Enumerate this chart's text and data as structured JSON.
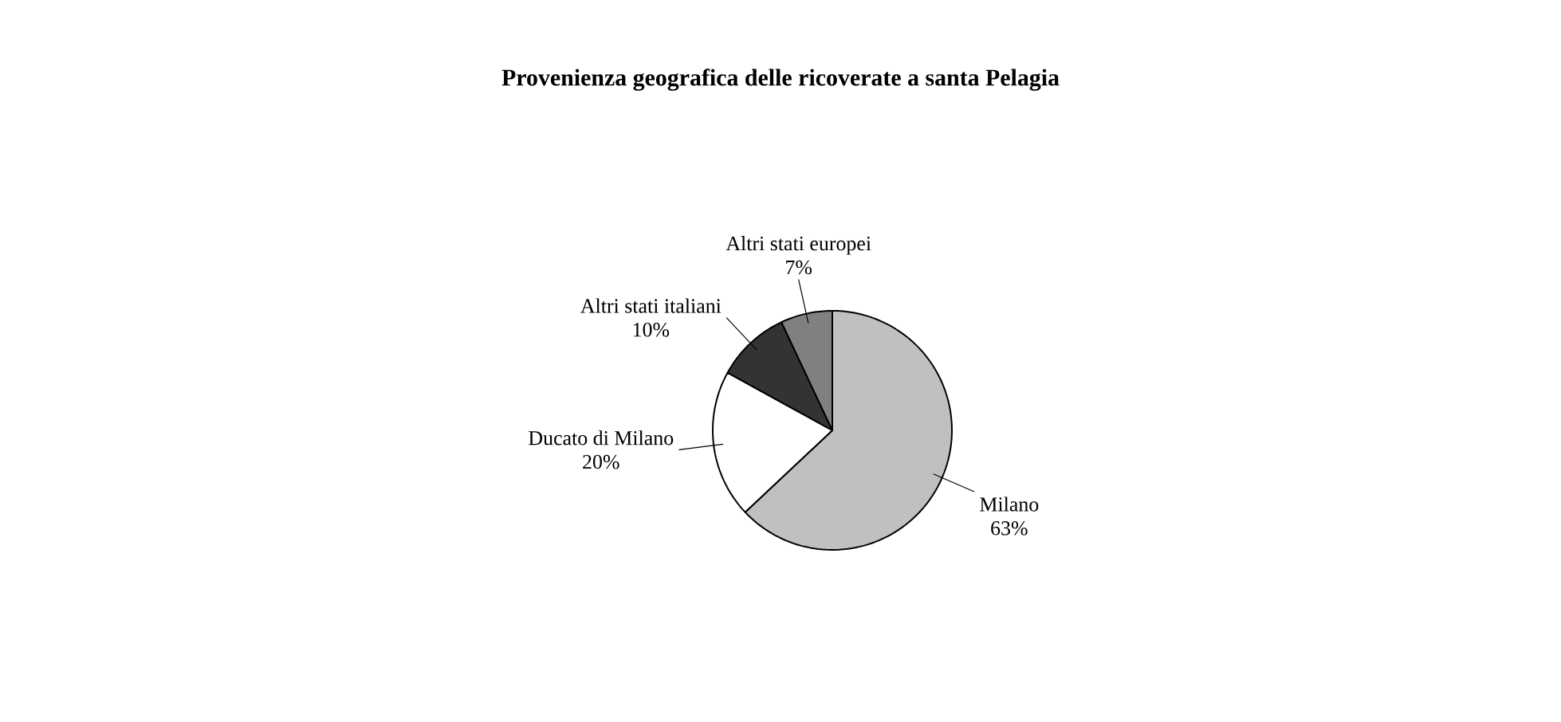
{
  "chart_data": {
    "type": "pie",
    "title": "Provenienza geografica delle ricoverate a santa Pelagia",
    "categories": [
      "Milano",
      "Ducato di Milano",
      "Altri stati italiani",
      "Altri stati europei"
    ],
    "values": [
      63,
      20,
      10,
      7
    ],
    "value_labels": [
      "63%",
      "20%",
      "10%",
      "7%"
    ],
    "colors": [
      "#c0c0c0",
      "#ffffff",
      "#333333",
      "#808080"
    ]
  }
}
